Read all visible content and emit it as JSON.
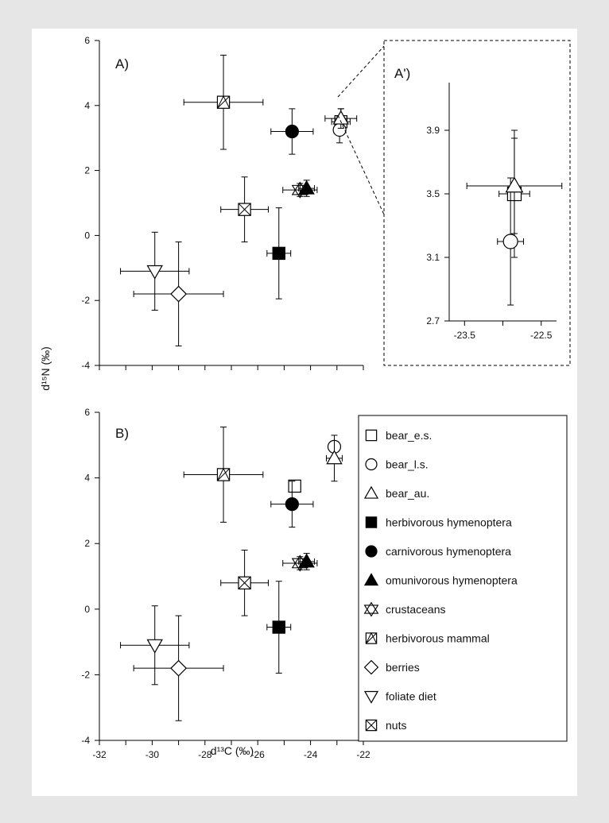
{
  "chart_data": [
    {
      "id": "A",
      "type": "scatter",
      "panel_label": "A)",
      "xlim": [
        -32,
        -22
      ],
      "ylim": [
        -4,
        6
      ],
      "xticks": [],
      "yticks": [
        6,
        4,
        2,
        0,
        -2,
        -4
      ],
      "ytick_labels": [
        "6",
        "4",
        "2",
        "0",
        "-2",
        "-4"
      ],
      "points": [
        {
          "series": "herbivorous mammal",
          "x": -27.3,
          "y": 4.1,
          "xerr": 1.5,
          "yerr": 1.45
        },
        {
          "series": "carnivorous hymenoptera",
          "x": -24.7,
          "y": 3.2,
          "xerr": 0.8,
          "yerr": 0.7
        },
        {
          "series": "nuts",
          "x": -26.5,
          "y": 0.8,
          "xerr": 0.9,
          "yerr": 1.0
        },
        {
          "series": "herbivorous hymenoptera",
          "x": -25.2,
          "y": -0.55,
          "xerr": 0.45,
          "yerr": 1.4
        },
        {
          "series": "crustaceans",
          "x": -24.4,
          "y": 1.4,
          "xerr": 0.65,
          "yerr": 0.2
        },
        {
          "series": "omunivorous hymenoptera",
          "x": -24.15,
          "y": 1.45,
          "xerr": 0.3,
          "yerr": 0.25
        },
        {
          "series": "foliate diet",
          "x": -29.9,
          "y": -1.1,
          "xerr": 1.3,
          "yerr": 1.2
        },
        {
          "series": "berries",
          "x": -29.0,
          "y": -1.8,
          "xerr": 1.7,
          "yerr": 1.6
        },
        {
          "series": "bear_e.s.",
          "x": -22.85,
          "y": 3.5,
          "xerr": 0.35,
          "yerr": 0.4
        },
        {
          "series": "bear_l.s.",
          "x": -22.9,
          "y": 3.25,
          "xerr": 0.2,
          "yerr": 0.4
        },
        {
          "series": "bear_au.",
          "x": -22.85,
          "y": 3.6,
          "xerr": 0.6,
          "yerr": 0.3
        }
      ]
    },
    {
      "id": "A_inset",
      "type": "scatter",
      "panel_label": "A')",
      "xlim": [
        -23.7,
        -22.3
      ],
      "ylim": [
        2.7,
        4.2
      ],
      "xticks": [
        -23.5,
        -22.5
      ],
      "xtick_labels": [
        "-23.5",
        "-22.5"
      ],
      "yticks": [
        3.9,
        3.5,
        3.1,
        2.7
      ],
      "ytick_labels": [
        "3.9",
        "3.5",
        "3.1",
        "2.7"
      ],
      "points": [
        {
          "series": "bear_e.s.",
          "x": -22.85,
          "y": 3.5,
          "xerr": 0.2,
          "yerr": 0.4
        },
        {
          "series": "bear_l.s.",
          "x": -22.9,
          "y": 3.2,
          "xerr": 0.17,
          "yerr": 0.4
        },
        {
          "series": "bear_au.",
          "x": -22.85,
          "y": 3.55,
          "xerr": 0.62,
          "yerr": 0.3
        }
      ]
    },
    {
      "id": "B",
      "type": "scatter",
      "panel_label": "B)",
      "xlabel": "d¹³C (‰)",
      "xlim": [
        -32,
        -22
      ],
      "ylim": [
        -4,
        6
      ],
      "xticks": [
        -32,
        -30,
        -28,
        -26,
        -24,
        -22
      ],
      "xtick_labels": [
        "-32",
        "-30",
        "-28",
        "-26",
        "-24",
        "-22"
      ],
      "yticks": [
        6,
        4,
        2,
        0,
        -2,
        -4
      ],
      "ytick_labels": [
        "6",
        "4",
        "2",
        "0",
        "-2",
        "-4"
      ],
      "points": [
        {
          "series": "herbivorous mammal",
          "x": -27.3,
          "y": 4.1,
          "xerr": 1.5,
          "yerr": 1.45
        },
        {
          "series": "bear_e.s.",
          "x": -24.6,
          "y": 3.75
        },
        {
          "series": "carnivorous hymenoptera",
          "x": -24.7,
          "y": 3.2,
          "xerr": 0.8,
          "yerr": 0.7
        },
        {
          "series": "bear_l.s.",
          "x": -23.1,
          "y": 4.95
        },
        {
          "series": "bear_au.",
          "x": -23.1,
          "y": 4.6,
          "xerr": 0.3,
          "yerr": 0.7
        },
        {
          "series": "nuts",
          "x": -26.5,
          "y": 0.8,
          "xerr": 0.9,
          "yerr": 1.0
        },
        {
          "series": "herbivorous hymenoptera",
          "x": -25.2,
          "y": -0.55,
          "xerr": 0.45,
          "yerr": 1.4
        },
        {
          "series": "crustaceans",
          "x": -24.4,
          "y": 1.4,
          "xerr": 0.65,
          "yerr": 0.2
        },
        {
          "series": "omunivorous hymenoptera",
          "x": -24.15,
          "y": 1.45,
          "xerr": 0.3,
          "yerr": 0.25
        },
        {
          "series": "foliate diet",
          "x": -29.9,
          "y": -1.1,
          "xerr": 1.3,
          "yerr": 1.2
        },
        {
          "series": "berries",
          "x": -29.0,
          "y": -1.8,
          "xerr": 1.7,
          "yerr": 1.6
        }
      ]
    }
  ],
  "ylabel": "d¹⁵N (‰)",
  "legend": [
    {
      "label": "bear_e.s.",
      "marker": "square",
      "fill": "open"
    },
    {
      "label": "bear_l.s.",
      "marker": "circle",
      "fill": "open"
    },
    {
      "label": "bear_au.",
      "marker": "triangle-up",
      "fill": "open"
    },
    {
      "label": "herbivorous hymenoptera",
      "marker": "square",
      "fill": "filled"
    },
    {
      "label": "carnivorous hymenoptera",
      "marker": "circle",
      "fill": "filled"
    },
    {
      "label": "omunivorous hymenoptera",
      "marker": "triangle-up",
      "fill": "filled"
    },
    {
      "label": "crustaceans",
      "marker": "star-of-david",
      "fill": "open"
    },
    {
      "label": "herbivorous mammal",
      "marker": "square-diagonal",
      "fill": "open"
    },
    {
      "label": "berries",
      "marker": "diamond",
      "fill": "open"
    },
    {
      "label": "foliate diet",
      "marker": "triangle-down",
      "fill": "open"
    },
    {
      "label": "nuts",
      "marker": "square-cross",
      "fill": "open"
    }
  ],
  "legend_placement": "B panel, right side",
  "colors": {
    "marker": "#000000",
    "background": "#e6e6e6",
    "panel": "#ffffff"
  }
}
